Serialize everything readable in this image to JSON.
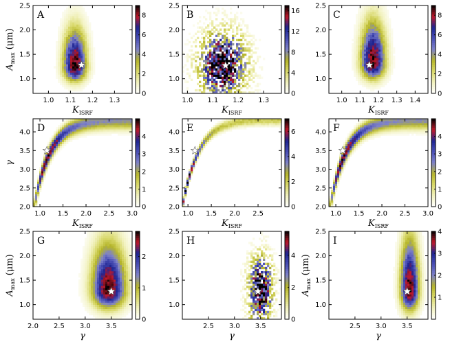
{
  "colormap": [
    "#ffffff",
    "#f2f2c0",
    "#d8d86a",
    "#b5b52a",
    "#7f82c8",
    "#4a4fb5",
    "#1e2490",
    "#c0182a",
    "#000000"
  ],
  "chart_data": [
    {
      "type": "heatmap",
      "letter": "A",
      "xlabel_main": "K",
      "xlabel_sub": "ISRF",
      "ylabel_main": "A",
      "ylabel_sub": "max",
      "ylabel_unit": " (μm)",
      "xlim": [
        0.93,
        1.38
      ],
      "ylim": [
        0.7,
        2.5
      ],
      "xticks": [
        1.0,
        1.1,
        1.2,
        1.3
      ],
      "xtick_labels": [
        "1.0",
        "1.1",
        "1.2",
        "1.3"
      ],
      "yticks": [
        1.0,
        1.5,
        2.0,
        2.5
      ],
      "ytick_labels": [
        "1.0",
        "1.5",
        "2.0",
        "2.5"
      ],
      "cbar_max": 9,
      "cbar_ticks": [
        0,
        2,
        4,
        6,
        8
      ],
      "cbar_labels": [
        "0",
        "2",
        "4",
        "6",
        "8"
      ],
      "peak": [
        1.12,
        1.25
      ],
      "star": [
        1.15,
        1.28
      ],
      "spread": [
        0.035,
        0.2
      ],
      "shape": "elongated-up",
      "noise": 0.12
    },
    {
      "type": "heatmap",
      "letter": "B",
      "xlabel_main": "K",
      "xlabel_sub": "ISRF",
      "ylabel_main": "",
      "ylabel_sub": "",
      "ylabel_unit": "",
      "xlim": [
        0.98,
        1.37
      ],
      "ylim": [
        0.7,
        2.5
      ],
      "xticks": [
        1.0,
        1.1,
        1.2,
        1.3
      ],
      "xtick_labels": [
        "1.0",
        "1.1",
        "1.2",
        "1.3"
      ],
      "yticks": [
        1.0,
        1.5,
        2.0,
        2.5
      ],
      "ytick_labels": [
        "1.0",
        "1.5",
        "2.0",
        "2.5"
      ],
      "cbar_max": 17,
      "cbar_ticks": [
        0,
        4,
        8,
        12,
        16
      ],
      "cbar_labels": [
        "0",
        "4",
        "8",
        "12",
        "16"
      ],
      "peak": [
        1.14,
        1.28
      ],
      "star": [
        1.15,
        1.27
      ],
      "spread": [
        0.06,
        0.45
      ],
      "shape": "sparse",
      "noise": 0.55
    },
    {
      "type": "heatmap",
      "letter": "C",
      "xlabel_main": "K",
      "xlabel_sub": "ISRF",
      "ylabel_main": "",
      "ylabel_sub": "",
      "ylabel_unit": "",
      "xlim": [
        0.93,
        1.47
      ],
      "ylim": [
        0.7,
        2.5
      ],
      "xticks": [
        1.0,
        1.1,
        1.2,
        1.3,
        1.4
      ],
      "xtick_labels": [
        "1.0",
        "1.1",
        "1.2",
        "1.3",
        "1.4"
      ],
      "yticks": [
        1.0,
        1.5,
        2.0,
        2.5
      ],
      "ytick_labels": [
        "1.0",
        "1.5",
        "2.0",
        "2.5"
      ],
      "cbar_max": 9,
      "cbar_ticks": [
        0,
        2,
        4,
        6,
        8
      ],
      "cbar_labels": [
        "0",
        "2",
        "4",
        "6",
        "8"
      ],
      "peak": [
        1.17,
        1.33
      ],
      "star": [
        1.15,
        1.28
      ],
      "spread": [
        0.045,
        0.22
      ],
      "shape": "elongated-up",
      "noise": 0.12
    },
    {
      "type": "heatmap",
      "letter": "D",
      "xlabel_main": "K",
      "xlabel_sub": "ISRF",
      "ylabel_main": "γ",
      "ylabel_sub": "",
      "ylabel_unit": "",
      "xlim": [
        0.85,
        3.0
      ],
      "ylim": [
        2.0,
        4.35
      ],
      "xticks": [
        1.0,
        1.5,
        2.0,
        2.5,
        3.0
      ],
      "xtick_labels": [
        "1.0",
        "1.5",
        "2.0",
        "2.5",
        "3.0"
      ],
      "yticks": [
        2.0,
        2.5,
        3.0,
        3.5,
        4.0
      ],
      "ytick_labels": [
        "2.0",
        "2.5",
        "3.0",
        "3.5",
        "4.0"
      ],
      "cbar_max": 5,
      "cbar_ticks": [
        0,
        1,
        2,
        3,
        4
      ],
      "cbar_labels": [
        "0",
        "1",
        "2",
        "3",
        "4"
      ],
      "peak": [
        1.05,
        3.25
      ],
      "star": [
        1.15,
        3.5
      ],
      "spread": [
        0.06,
        0.4
      ],
      "shape": "curve",
      "noise": 0.05
    },
    {
      "type": "heatmap",
      "letter": "E",
      "xlabel_main": "K",
      "xlabel_sub": "ISRF",
      "ylabel_main": "",
      "ylabel_sub": "",
      "ylabel_unit": "",
      "xlim": [
        0.88,
        3.0
      ],
      "ylim": [
        2.0,
        4.35
      ],
      "xticks": [
        1.0,
        1.5,
        2.0,
        2.5
      ],
      "xtick_labels": [
        "1.0",
        "1.5",
        "2.0",
        "2.5"
      ],
      "yticks": [
        2.0,
        2.5,
        3.0,
        3.5,
        4.0
      ],
      "ytick_labels": [
        "2.0",
        "2.5",
        "3.0",
        "3.5",
        "4.0"
      ],
      "cbar_max": 7,
      "cbar_ticks": [
        0,
        2,
        4,
        6
      ],
      "cbar_labels": [
        "0",
        "2",
        "4",
        "6"
      ],
      "peak": [
        1.0,
        2.7
      ],
      "star": [
        1.15,
        3.5
      ],
      "spread": [
        0.04,
        0.5
      ],
      "shape": "curve-thin",
      "noise": 0.15
    },
    {
      "type": "heatmap",
      "letter": "F",
      "xlabel_main": "K",
      "xlabel_sub": "ISRF",
      "ylabel_main": "",
      "ylabel_sub": "",
      "ylabel_unit": "",
      "xlim": [
        0.85,
        3.0
      ],
      "ylim": [
        2.0,
        4.35
      ],
      "xticks": [
        1.0,
        1.5,
        2.0,
        2.5,
        3.0
      ],
      "xtick_labels": [
        "1.0",
        "1.5",
        "2.0",
        "2.5",
        "3.0"
      ],
      "yticks": [
        2.0,
        2.5,
        3.0,
        3.5,
        4.0
      ],
      "ytick_labels": [
        "2.0",
        "2.5",
        "3.0",
        "3.5",
        "4.0"
      ],
      "cbar_max": 5,
      "cbar_ticks": [
        0,
        1,
        2,
        3,
        4
      ],
      "cbar_labels": [
        "0",
        "1",
        "2",
        "3",
        "4"
      ],
      "peak": [
        1.05,
        3.25
      ],
      "star": [
        1.15,
        3.5
      ],
      "spread": [
        0.06,
        0.4
      ],
      "shape": "curve",
      "noise": 0.05
    },
    {
      "type": "heatmap",
      "letter": "G",
      "xlabel_main": "γ",
      "xlabel_sub": "",
      "ylabel_main": "A",
      "ylabel_sub": "max",
      "ylabel_unit": " (μm)",
      "xlim": [
        2.0,
        3.9
      ],
      "ylim": [
        0.7,
        2.5
      ],
      "xticks": [
        2.0,
        2.5,
        3.0,
        3.5
      ],
      "xtick_labels": [
        "2.0",
        "2.5",
        "3.0",
        "3.5"
      ],
      "yticks": [
        1.0,
        1.5,
        2.0,
        2.5
      ],
      "ytick_labels": [
        "1.0",
        "1.5",
        "2.0",
        "2.5"
      ],
      "cbar_max": 2.8,
      "cbar_ticks": [
        0,
        1,
        2
      ],
      "cbar_labels": [
        "0",
        "1",
        "2"
      ],
      "peak": [
        3.45,
        1.3
      ],
      "star": [
        3.5,
        1.27
      ],
      "spread": [
        0.22,
        0.25
      ],
      "shape": "elongated-up",
      "noise": 0.06
    },
    {
      "type": "heatmap",
      "letter": "H",
      "xlabel_main": "γ",
      "xlabel_sub": "",
      "ylabel_main": "",
      "ylabel_sub": "",
      "ylabel_unit": "",
      "xlim": [
        2.0,
        3.9
      ],
      "ylim": [
        0.7,
        2.5
      ],
      "xticks": [
        2.5,
        3.0,
        3.5
      ],
      "xtick_labels": [
        "2.5",
        "3.0",
        "3.5"
      ],
      "yticks": [
        1.0,
        1.5,
        2.0,
        2.5
      ],
      "ytick_labels": [
        "1.0",
        "1.5",
        "2.0",
        "2.5"
      ],
      "cbar_max": 5.5,
      "cbar_ticks": [
        0,
        2,
        4
      ],
      "cbar_labels": [
        "0",
        "2",
        "4"
      ],
      "peak": [
        3.5,
        1.3
      ],
      "star": [
        3.45,
        1.27
      ],
      "spread": [
        0.15,
        0.45
      ],
      "shape": "sparse",
      "noise": 0.45
    },
    {
      "type": "heatmap",
      "letter": "I",
      "xlabel_main": "γ",
      "xlabel_sub": "",
      "ylabel_main": "A",
      "ylabel_sub": "max",
      "ylabel_unit": " (μm)",
      "xlim": [
        2.0,
        3.9
      ],
      "ylim": [
        0.7,
        2.5
      ],
      "xticks": [
        2.5,
        3.0,
        3.5
      ],
      "xtick_labels": [
        "2.5",
        "3.0",
        "3.5"
      ],
      "yticks": [
        1.0,
        1.5,
        2.0,
        2.5
      ],
      "ytick_labels": [
        "1.0",
        "1.5",
        "2.0",
        "2.5"
      ],
      "cbar_max": 4,
      "cbar_ticks": [
        1,
        2,
        3,
        4
      ],
      "cbar_labels": [
        "1",
        "2",
        "3",
        "4"
      ],
      "peak": [
        3.55,
        1.3
      ],
      "star": [
        3.5,
        1.27
      ],
      "spread": [
        0.12,
        0.28
      ],
      "shape": "elongated-up",
      "noise": 0.08
    }
  ]
}
